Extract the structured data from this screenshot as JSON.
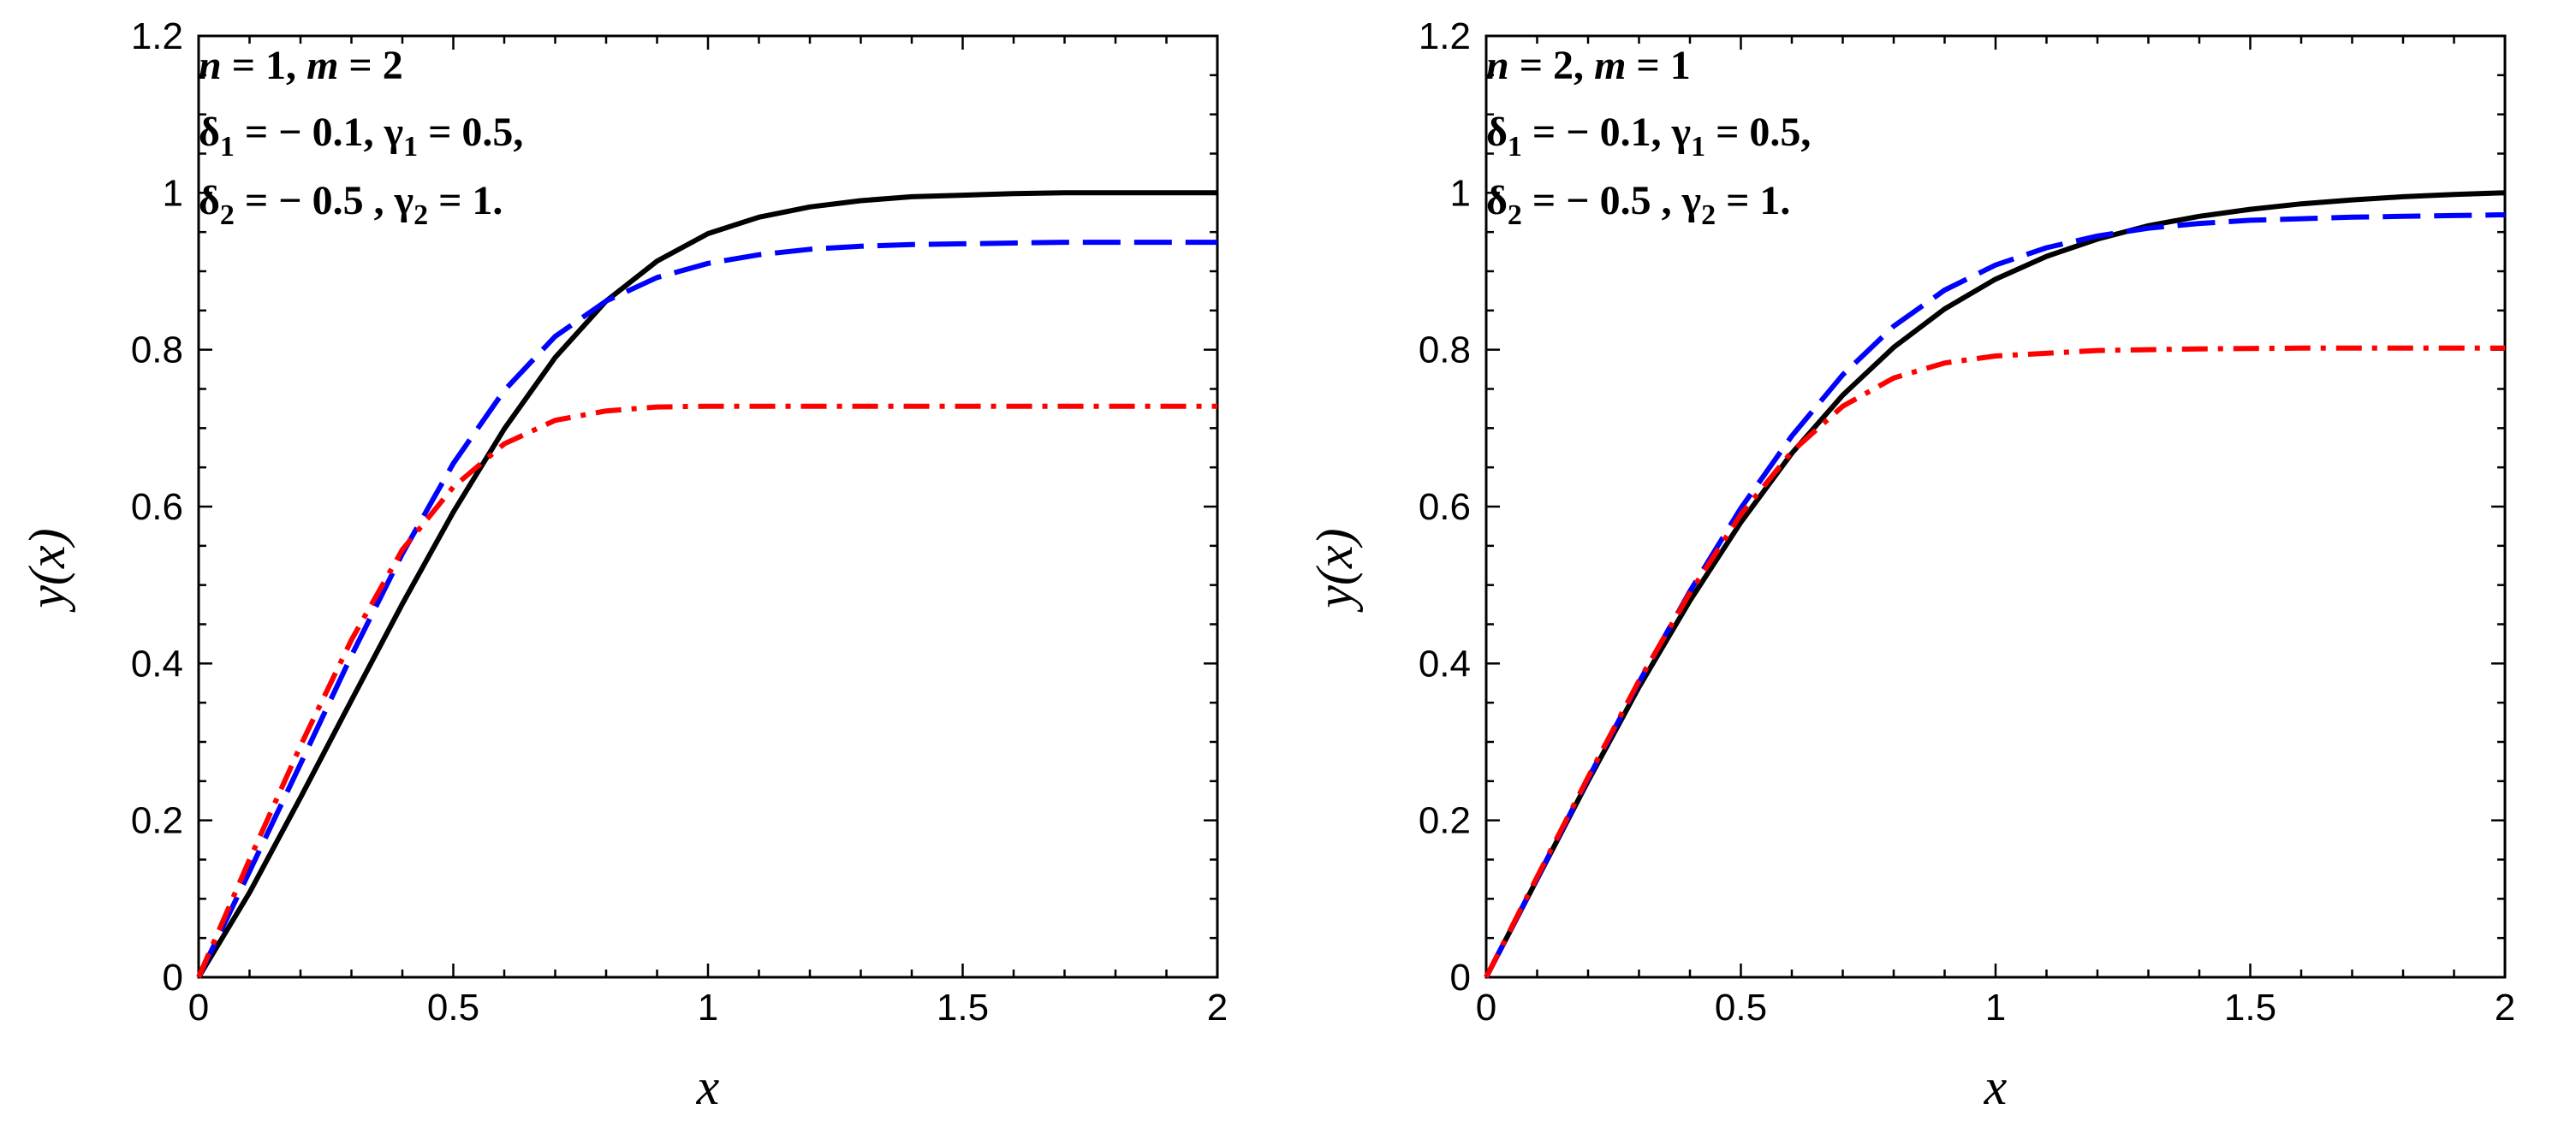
{
  "chart_data": [
    {
      "type": "line",
      "xlabel": "x",
      "ylabel": "y(x)",
      "xlim": [
        0,
        2
      ],
      "ylim": [
        0,
        1.2
      ],
      "xticks": [
        "0",
        "0.5",
        "1",
        "1.5",
        "2"
      ],
      "yticks": [
        "0",
        "0.2",
        "0.4",
        "0.6",
        "0.8",
        "1",
        "1.2"
      ],
      "grid": false,
      "annotation": {
        "line1": {
          "n_var": "n",
          "n_val": " = 1, ",
          "m_var": "m",
          "m_val": " = 2"
        },
        "line2": {
          "d_sym": "δ",
          "d_sub": "1",
          "d_val": " = − 0.1, ",
          "g_sym": "γ",
          "g_sub": "1",
          "g_val": " = 0.5,"
        },
        "line3": {
          "d_sym": "δ",
          "d_sub": "2",
          "d_val": " = − 0.5 , ",
          "g_sym": "γ",
          "g_sub": "2",
          "g_val": " = 1."
        }
      },
      "series": [
        {
          "color": "#000000",
          "dash": "solid",
          "x": [
            0,
            0.1,
            0.2,
            0.3,
            0.4,
            0.5,
            0.6,
            0.7,
            0.8,
            0.9,
            1.0,
            1.1,
            1.2,
            1.3,
            1.4,
            1.5,
            1.6,
            1.7,
            1.8,
            1.9,
            2.0
          ],
          "y": [
            0,
            0.108,
            0.229,
            0.353,
            0.476,
            0.593,
            0.699,
            0.79,
            0.862,
            0.913,
            0.948,
            0.969,
            0.982,
            0.99,
            0.995,
            0.997,
            0.999,
            1.0,
            1.0,
            1.0,
            1.0
          ]
        },
        {
          "color": "#0000ff",
          "dash": "dashed",
          "x": [
            0,
            0.1,
            0.2,
            0.3,
            0.4,
            0.5,
            0.6,
            0.7,
            0.8,
            0.9,
            1.0,
            1.1,
            1.2,
            1.3,
            1.4,
            1.5,
            1.6,
            1.7,
            1.8,
            1.9,
            2.0
          ],
          "y": [
            0,
            0.135,
            0.272,
            0.41,
            0.54,
            0.655,
            0.748,
            0.817,
            0.862,
            0.892,
            0.91,
            0.921,
            0.928,
            0.932,
            0.934,
            0.935,
            0.936,
            0.937,
            0.937,
            0.937,
            0.937
          ]
        },
        {
          "color": "#ff0000",
          "dash": "dashdot",
          "x": [
            0,
            0.1,
            0.2,
            0.3,
            0.4,
            0.5,
            0.6,
            0.7,
            0.8,
            0.9,
            1.0,
            1.2,
            1.4,
            1.6,
            1.8,
            2.0
          ],
          "y": [
            0,
            0.15,
            0.295,
            0.43,
            0.545,
            0.625,
            0.68,
            0.71,
            0.722,
            0.727,
            0.728,
            0.728,
            0.728,
            0.728,
            0.728,
            0.728
          ]
        }
      ]
    },
    {
      "type": "line",
      "xlabel": "x",
      "ylabel": "y(x)",
      "xlim": [
        0,
        2
      ],
      "ylim": [
        0,
        1.2
      ],
      "xticks": [
        "0",
        "0.5",
        "1",
        "1.5",
        "2"
      ],
      "yticks": [
        "0",
        "0.2",
        "0.4",
        "0.6",
        "0.8",
        "1",
        "1.2"
      ],
      "grid": false,
      "annotation": {
        "line1": {
          "n_var": "n",
          "n_val": " = 2, ",
          "m_var": "m",
          "m_val": " = 1"
        },
        "line2": {
          "d_sym": "δ",
          "d_sub": "1",
          "d_val": " = − 0.1, ",
          "g_sym": "γ",
          "g_sub": "1",
          "g_val": " = 0.5,"
        },
        "line3": {
          "d_sym": "δ",
          "d_sub": "2",
          "d_val": " = − 0.5 , ",
          "g_sym": "γ",
          "g_sub": "2",
          "g_val": " = 1."
        }
      },
      "series": [
        {
          "color": "#000000",
          "dash": "solid",
          "x": [
            0,
            0.1,
            0.2,
            0.3,
            0.4,
            0.5,
            0.6,
            0.7,
            0.8,
            0.9,
            1.0,
            1.1,
            1.2,
            1.3,
            1.4,
            1.5,
            1.6,
            1.7,
            1.8,
            1.9,
            2.0
          ],
          "y": [
            0,
            0.125,
            0.25,
            0.37,
            0.48,
            0.58,
            0.668,
            0.742,
            0.803,
            0.852,
            0.89,
            0.919,
            0.941,
            0.958,
            0.97,
            0.979,
            0.986,
            0.991,
            0.995,
            0.998,
            1.0
          ]
        },
        {
          "color": "#0000ff",
          "dash": "dashed",
          "x": [
            0,
            0.1,
            0.2,
            0.3,
            0.4,
            0.5,
            0.6,
            0.7,
            0.8,
            0.9,
            1.0,
            1.1,
            1.2,
            1.3,
            1.4,
            1.5,
            1.6,
            1.7,
            1.8,
            1.9,
            2.0
          ],
          "y": [
            0,
            0.126,
            0.253,
            0.376,
            0.492,
            0.598,
            0.69,
            0.768,
            0.83,
            0.876,
            0.908,
            0.93,
            0.945,
            0.955,
            0.961,
            0.965,
            0.967,
            0.969,
            0.97,
            0.971,
            0.972
          ]
        },
        {
          "color": "#ff0000",
          "dash": "dashdot",
          "x": [
            0,
            0.1,
            0.2,
            0.3,
            0.4,
            0.5,
            0.6,
            0.7,
            0.8,
            0.9,
            1.0,
            1.2,
            1.4,
            1.6,
            1.8,
            2.0
          ],
          "y": [
            0,
            0.128,
            0.255,
            0.378,
            0.49,
            0.59,
            0.67,
            0.728,
            0.764,
            0.783,
            0.792,
            0.799,
            0.801,
            0.802,
            0.802,
            0.802
          ]
        }
      ]
    }
  ]
}
